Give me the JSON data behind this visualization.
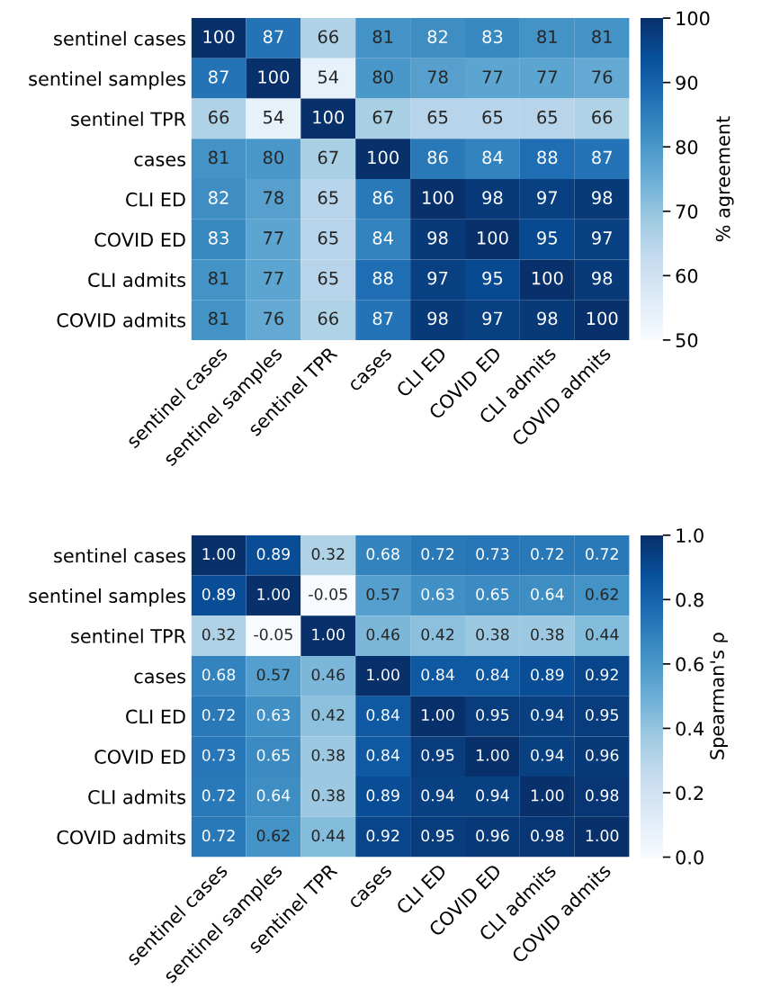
{
  "chart_data": [
    {
      "type": "heatmap",
      "categories": [
        "sentinel cases",
        "sentinel samples",
        "sentinel TPR",
        "cases",
        "CLI ED",
        "COVID ED",
        "CLI admits",
        "COVID admits"
      ],
      "y_categories": [
        "sentinel cases",
        "sentinel samples",
        "sentinel TPR",
        "cases",
        "CLI ED",
        "COVID ED",
        "CLI admits",
        "COVID admits"
      ],
      "cells": [
        [
          100,
          87,
          66,
          81,
          82,
          83,
          81,
          81
        ],
        [
          87,
          100,
          54,
          80,
          78,
          77,
          77,
          76
        ],
        [
          66,
          54,
          100,
          67,
          65,
          65,
          65,
          66
        ],
        [
          81,
          80,
          67,
          100,
          86,
          84,
          88,
          87
        ],
        [
          82,
          78,
          65,
          86,
          100,
          98,
          97,
          98
        ],
        [
          83,
          77,
          65,
          84,
          98,
          100,
          95,
          97
        ],
        [
          81,
          77,
          65,
          88,
          97,
          95,
          100,
          98
        ],
        [
          81,
          76,
          66,
          87,
          98,
          97,
          98,
          100
        ]
      ],
      "data_labels": true,
      "clim": [
        50,
        100
      ],
      "cticks": [
        50,
        60,
        70,
        80,
        90,
        100
      ],
      "clabel": "% agreement"
    },
    {
      "type": "heatmap",
      "categories": [
        "sentinel cases",
        "sentinel samples",
        "sentinel TPR",
        "cases",
        "CLI ED",
        "COVID ED",
        "CLI admits",
        "COVID admits"
      ],
      "y_categories": [
        "sentinel cases",
        "sentinel samples",
        "sentinel TPR",
        "cases",
        "CLI ED",
        "COVID ED",
        "CLI admits",
        "COVID admits"
      ],
      "cells": [
        [
          1.0,
          0.89,
          0.32,
          0.68,
          0.72,
          0.73,
          0.72,
          0.72
        ],
        [
          0.89,
          1.0,
          -0.05,
          0.57,
          0.63,
          0.65,
          0.64,
          0.62
        ],
        [
          0.32,
          -0.05,
          1.0,
          0.46,
          0.42,
          0.38,
          0.38,
          0.44
        ],
        [
          0.68,
          0.57,
          0.46,
          1.0,
          0.84,
          0.84,
          0.89,
          0.92
        ],
        [
          0.72,
          0.63,
          0.42,
          0.84,
          1.0,
          0.95,
          0.94,
          0.95
        ],
        [
          0.73,
          0.65,
          0.38,
          0.84,
          0.95,
          1.0,
          0.94,
          0.96
        ],
        [
          0.72,
          0.64,
          0.38,
          0.89,
          0.94,
          0.94,
          1.0,
          0.98
        ],
        [
          0.72,
          0.62,
          0.44,
          0.92,
          0.95,
          0.96,
          0.98,
          1.0
        ]
      ],
      "cell_labels": [
        [
          "1.00",
          "0.89",
          "0.32",
          "0.68",
          "0.72",
          "0.73",
          "0.72",
          "0.72"
        ],
        [
          "0.89",
          "1.00",
          "-0.05",
          "0.57",
          "0.63",
          "0.65",
          "0.64",
          "0.62"
        ],
        [
          "0.32",
          "-0.05",
          "1.00",
          "0.46",
          "0.42",
          "0.38",
          "0.38",
          "0.44"
        ],
        [
          "0.68",
          "0.57",
          "0.46",
          "1.00",
          "0.84",
          "0.84",
          "0.89",
          "0.92"
        ],
        [
          "0.72",
          "0.63",
          "0.42",
          "0.84",
          "1.00",
          "0.95",
          "0.94",
          "0.95"
        ],
        [
          "0.73",
          "0.65",
          "0.38",
          "0.84",
          "0.95",
          "1.00",
          "0.94",
          "0.96"
        ],
        [
          "0.72",
          "0.64",
          "0.38",
          "0.89",
          "0.94",
          "0.94",
          "1.00",
          "0.98"
        ],
        [
          "0.72",
          "0.62",
          "0.44",
          "0.92",
          "0.95",
          "0.96",
          "0.98",
          "1.00"
        ]
      ],
      "clim": [
        0,
        1
      ],
      "cticks": [
        {
          "value": 0,
          "label": "0.0"
        },
        {
          "value": 0.2,
          "label": "0.2"
        },
        {
          "value": 0.4,
          "label": "0.4"
        },
        {
          "value": 0.6,
          "label": "0.6"
        },
        {
          "value": 0.8,
          "label": "0.8"
        },
        {
          "value": 1,
          "label": "1.0"
        }
      ],
      "clabel": "Spearman's ρ"
    }
  ]
}
